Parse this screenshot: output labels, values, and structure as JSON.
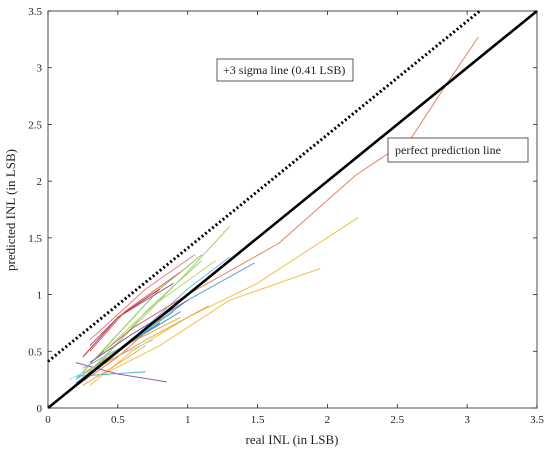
{
  "chart_data": {
    "type": "line",
    "xlabel": "real INL (in LSB)",
    "ylabel": "predicted INL (in LSB)",
    "xlim": [
      0,
      3.5
    ],
    "ylim": [
      0,
      3.5
    ],
    "xticks": [
      "0",
      "0.5",
      "1",
      "1.5",
      "2",
      "2.5",
      "3",
      "3.5"
    ],
    "yticks": [
      "0",
      "0.5",
      "1",
      "1.5",
      "2",
      "2.5",
      "3",
      "3.5"
    ],
    "grid": false,
    "reference_lines": [
      {
        "label": "perfect prediction line",
        "style": "solid",
        "color": "#000000",
        "x": [
          0,
          3.5
        ],
        "y": [
          0,
          3.5
        ]
      },
      {
        "label": "+3 sigma line (0.41 LSB)",
        "style": "dotted",
        "color": "#000000",
        "x": [
          0,
          3.09
        ],
        "y": [
          0.41,
          3.5
        ]
      }
    ],
    "annotations": [
      {
        "text": "+3 sigma line (0.41 LSB)"
      },
      {
        "text": "perfect prediction line"
      }
    ],
    "series": [
      {
        "color": "#e8825a",
        "x": [
          0.15,
          0.5,
          1.0,
          1.65,
          2.2,
          2.6,
          2.85,
          3.08
        ],
        "y": [
          0.15,
          0.45,
          1.0,
          1.45,
          2.05,
          2.38,
          2.85,
          3.27
        ]
      },
      {
        "color": "#f5c04a",
        "x": [
          0.3,
          0.6,
          1.0,
          1.5,
          2.22
        ],
        "y": [
          0.2,
          0.5,
          0.8,
          1.1,
          1.68
        ]
      },
      {
        "color": "#f5c04a",
        "x": [
          0.4,
          0.8,
          1.3,
          1.95
        ],
        "y": [
          0.3,
          0.55,
          0.95,
          1.23
        ]
      },
      {
        "color": "#a1d07a",
        "x": [
          0.2,
          0.6,
          1.0,
          1.3
        ],
        "y": [
          0.2,
          0.7,
          1.2,
          1.6
        ]
      },
      {
        "color": "#a1d07a",
        "x": [
          0.3,
          0.7,
          1.1
        ],
        "y": [
          0.3,
          0.85,
          1.3
        ]
      },
      {
        "color": "#8fc24e",
        "x": [
          0.2,
          0.8,
          1.1
        ],
        "y": [
          0.25,
          1.05,
          1.35
        ]
      },
      {
        "color": "#5aa0d6",
        "x": [
          0.15,
          0.5,
          1.0,
          1.48
        ],
        "y": [
          0.15,
          0.5,
          0.95,
          1.28
        ]
      },
      {
        "color": "#7cb7e6",
        "x": [
          0.2,
          0.6,
          1.0,
          1.3
        ],
        "y": [
          0.25,
          0.6,
          1.05,
          1.33
        ]
      },
      {
        "color": "#2f7fc4",
        "x": [
          0.25,
          0.5,
          0.8
        ],
        "y": [
          0.3,
          0.5,
          0.75
        ]
      },
      {
        "color": "#9b57b3",
        "x": [
          0.2,
          0.5,
          0.85
        ],
        "y": [
          0.4,
          0.3,
          0.23
        ]
      },
      {
        "color": "#9b57b3",
        "x": [
          0.3,
          0.5,
          0.9
        ],
        "y": [
          0.55,
          0.8,
          1.1
        ]
      },
      {
        "color": "#d96060",
        "x": [
          0.3,
          0.55,
          0.95
        ],
        "y": [
          0.5,
          0.85,
          1.2
        ]
      },
      {
        "color": "#c0392b",
        "x": [
          0.25,
          0.5,
          0.8
        ],
        "y": [
          0.45,
          0.8,
          1.05
        ]
      },
      {
        "color": "#e87d7d",
        "x": [
          0.3,
          0.7,
          1.05
        ],
        "y": [
          0.6,
          1.05,
          1.35
        ]
      },
      {
        "color": "#d46a6a",
        "x": [
          0.35,
          0.6,
          1.0
        ],
        "y": [
          0.45,
          0.7,
          1.0
        ]
      },
      {
        "color": "#6bc3c3",
        "x": [
          0.25,
          0.55,
          0.9
        ],
        "y": [
          0.35,
          0.55,
          0.85
        ]
      },
      {
        "color": "#4db8b8",
        "x": [
          0.2,
          0.45,
          0.7
        ],
        "y": [
          0.28,
          0.3,
          0.32
        ]
      },
      {
        "color": "#a5d8e6",
        "x": [
          0.15,
          0.4,
          0.75
        ],
        "y": [
          0.25,
          0.4,
          0.6
        ]
      },
      {
        "color": "#f0a830",
        "x": [
          0.25,
          0.55,
          0.95
        ],
        "y": [
          0.3,
          0.55,
          0.8
        ]
      },
      {
        "color": "#e3a84b",
        "x": [
          0.35,
          0.7,
          1.15
        ],
        "y": [
          0.35,
          0.6,
          0.9
        ]
      },
      {
        "color": "#b6d86e",
        "x": [
          0.4,
          0.75,
          1.2
        ],
        "y": [
          0.5,
          0.9,
          1.3
        ]
      },
      {
        "color": "#7b5ea7",
        "x": [
          0.3,
          0.6,
          1.0
        ],
        "y": [
          0.4,
          0.65,
          0.95
        ]
      },
      {
        "color": "#e0b060",
        "x": [
          0.25,
          0.45,
          0.7
        ],
        "y": [
          0.2,
          0.35,
          0.55
        ]
      },
      {
        "color": "#4e8fd1",
        "x": [
          0.2,
          0.55,
          0.95
        ],
        "y": [
          0.22,
          0.55,
          0.85
        ]
      }
    ]
  }
}
